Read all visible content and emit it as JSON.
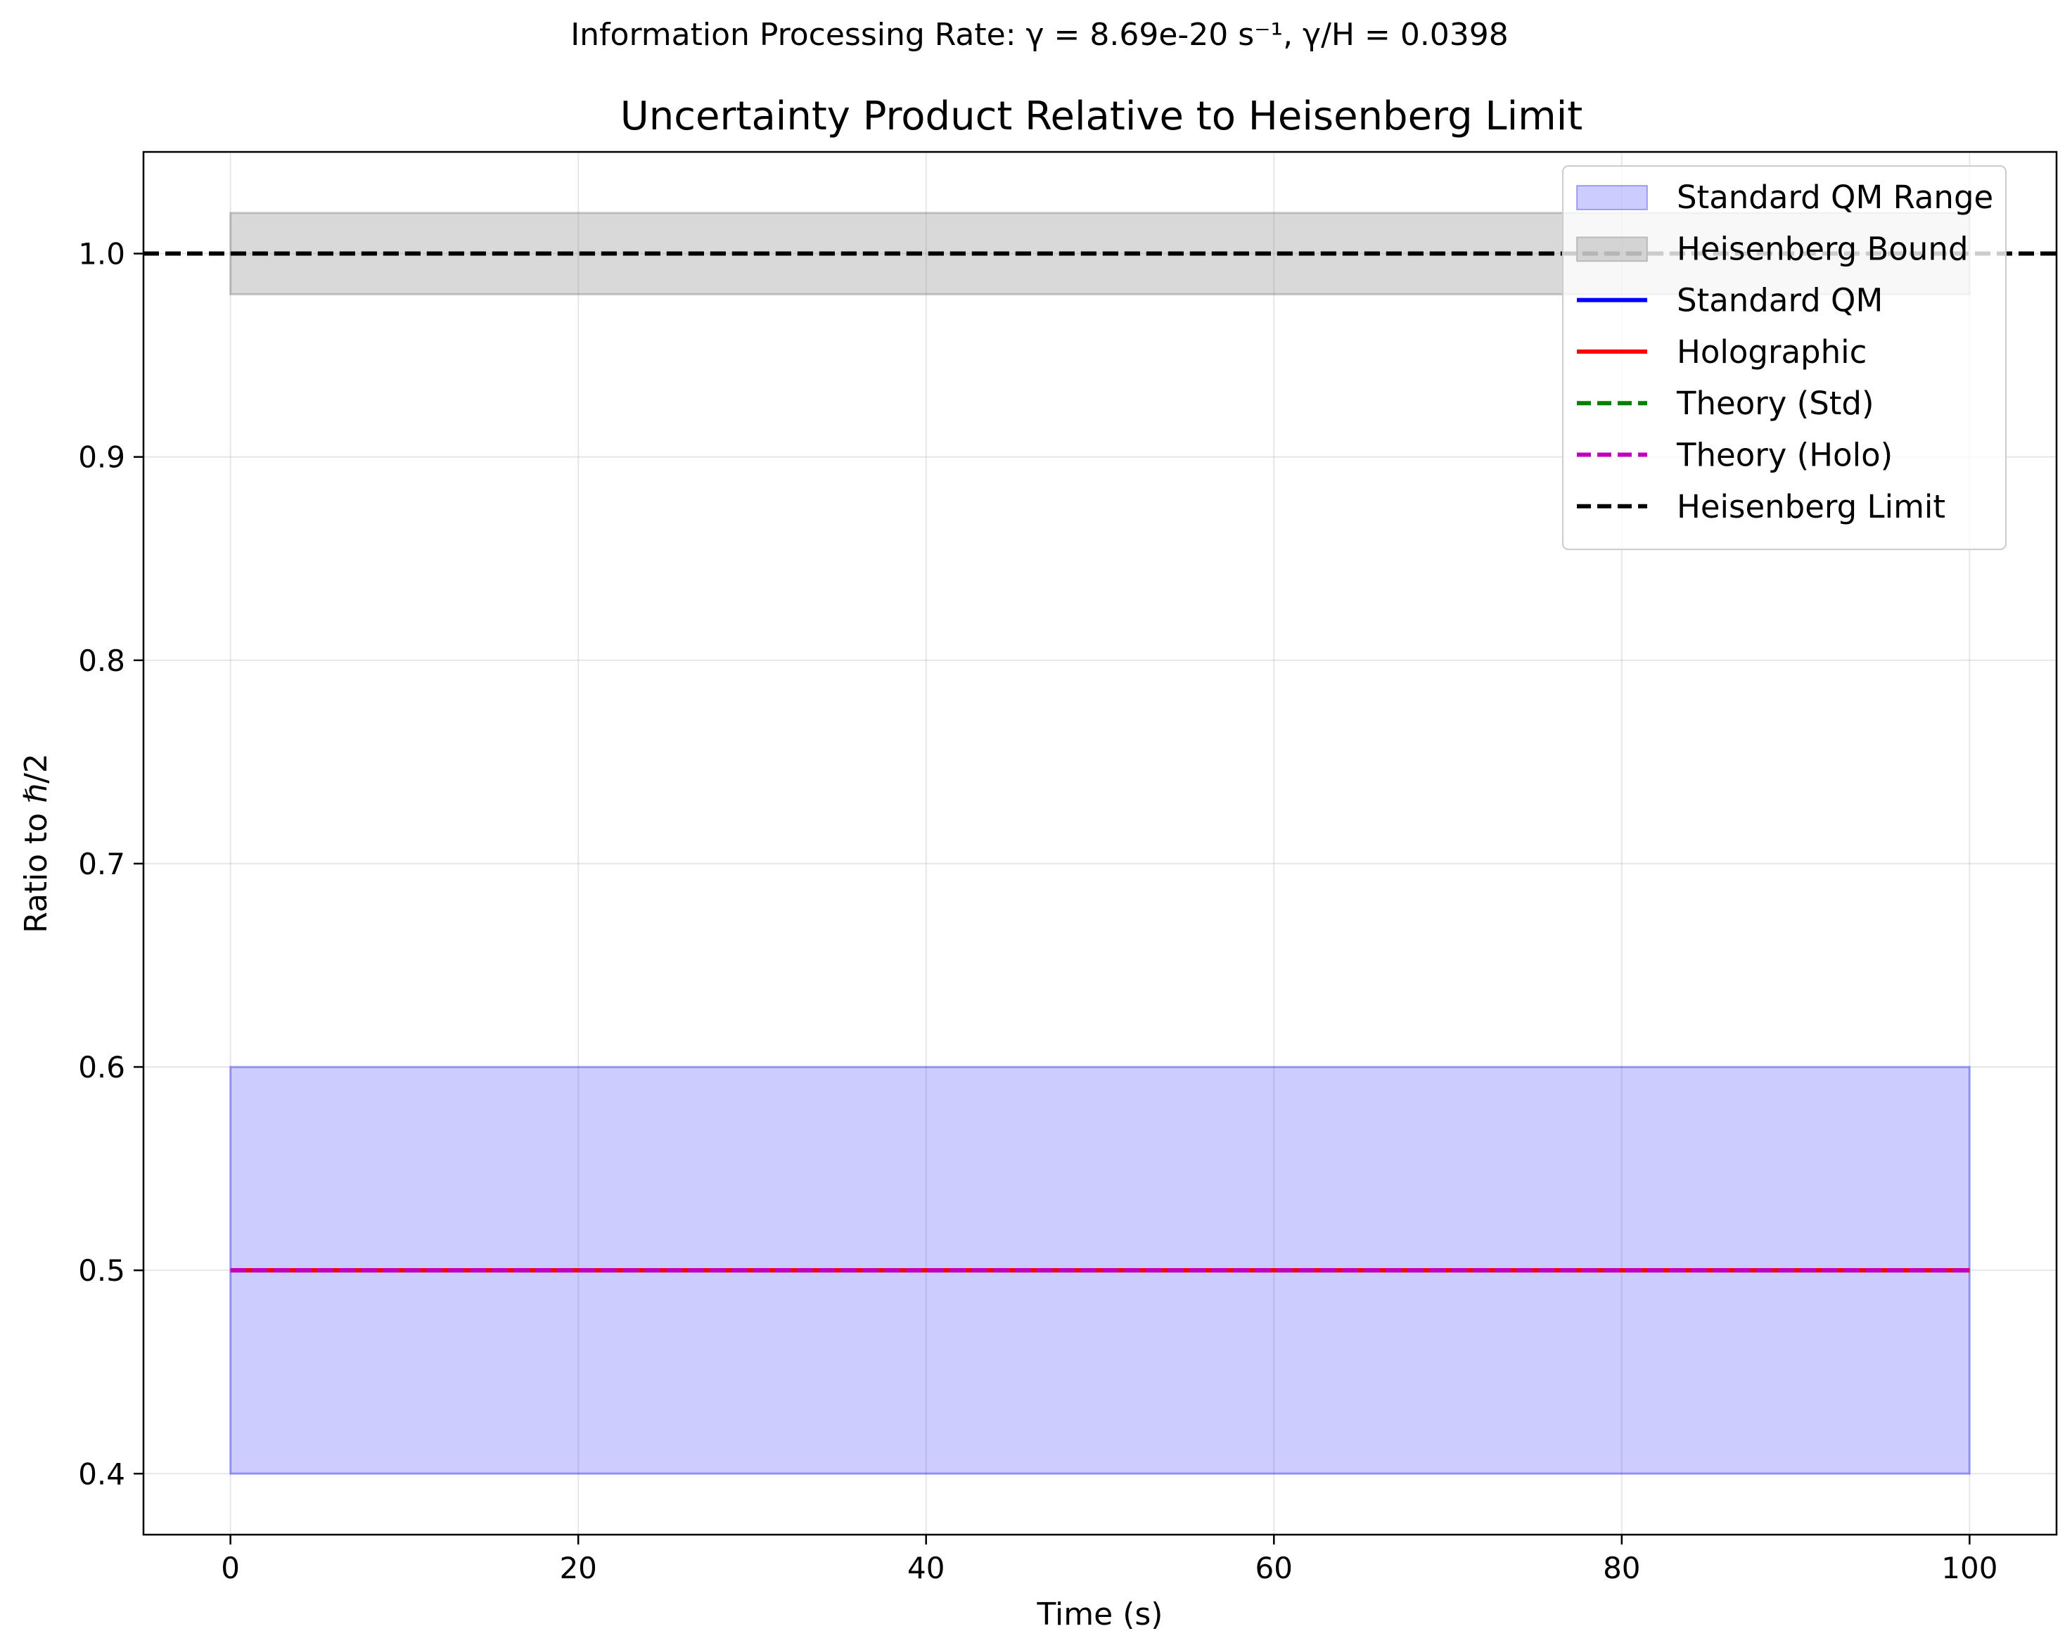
{
  "suptitle": "Information Processing Rate: γ = 8.69e-20 s⁻¹, γ/H = 0.0398",
  "chart_data": {
    "type": "line",
    "title": "Uncertainty Product Relative to Heisenberg Limit",
    "xlabel": "Time (s)",
    "ylabel": "Ratio to ℏ/2",
    "xlim": [
      -5,
      105
    ],
    "ylim": [
      0.37,
      1.05
    ],
    "xticks": [
      0,
      20,
      40,
      60,
      80,
      100
    ],
    "xtick_labels": [
      "0",
      "20",
      "40",
      "60",
      "80",
      "100"
    ],
    "yticks": [
      0.4,
      0.5,
      0.6,
      0.7,
      0.8,
      0.9,
      1.0
    ],
    "ytick_labels": [
      "0.4",
      "0.5",
      "0.6",
      "0.7",
      "0.8",
      "0.9",
      "1.0"
    ],
    "grid": true,
    "legend_position": "top-right",
    "bands": [
      {
        "name": "Standard QM Range",
        "x": [
          0,
          100
        ],
        "y_low": 0.4,
        "y_high": 0.6,
        "color": "#0000ff",
        "opacity": 0.2
      },
      {
        "name": "Heisenberg Bound",
        "x": [
          0,
          100
        ],
        "y_low": 0.98,
        "y_high": 1.02,
        "color": "#808080",
        "opacity": 0.3
      }
    ],
    "series": [
      {
        "name": "Standard QM",
        "x": [
          0,
          100
        ],
        "y": [
          0.5,
          0.5
        ],
        "color": "#0000ff",
        "style": "solid"
      },
      {
        "name": "Holographic",
        "x": [
          0,
          100
        ],
        "y": [
          0.5,
          0.5
        ],
        "color": "#ff0000",
        "style": "solid"
      },
      {
        "name": "Theory (Std)",
        "x": [
          0,
          100
        ],
        "y": [
          1.0,
          1.0
        ],
        "color": "#008000",
        "style": "dashed"
      },
      {
        "name": "Theory (Holo)",
        "x": [
          0,
          100
        ],
        "y": [
          0.5,
          0.5
        ],
        "color": "#bf00bf",
        "style": "dashed"
      }
    ],
    "hlines": [
      {
        "name": "Heisenberg Limit",
        "y": 1.0,
        "color": "#000000",
        "style": "dashed"
      }
    ]
  }
}
